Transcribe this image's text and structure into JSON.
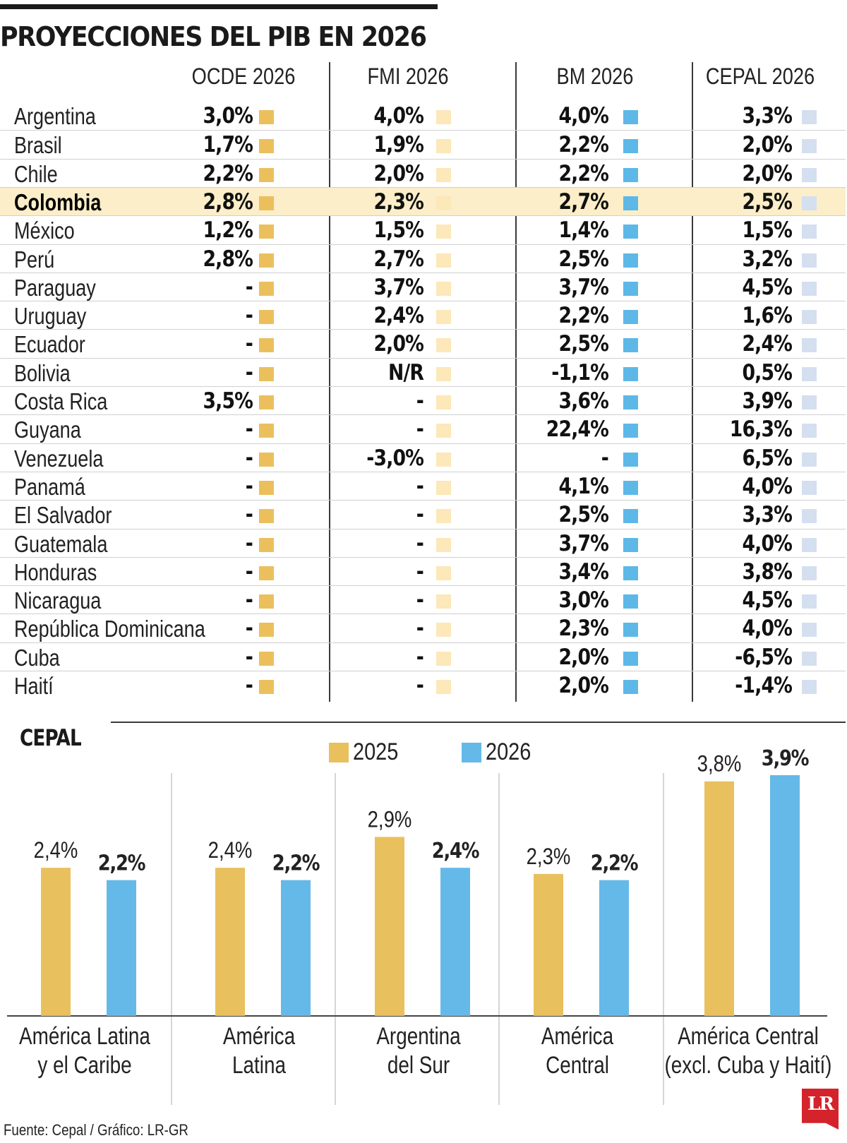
{
  "title": "PROYECCIONES DEL PIB EN 2026",
  "colors": {
    "ocde": "#EBC05C",
    "fmi": "#FCE8B8",
    "bm": "#5DB8E8",
    "cepal": "#D4DFF0",
    "bar2025": "#E9C05E",
    "bar2026": "#64B9E9",
    "highlight": "#FBEEC8"
  },
  "table": {
    "headers": [
      "OCDE 2026",
      "FMI 2026",
      "BM 2026",
      "CEPAL 2026"
    ],
    "rows": [
      {
        "country": "Argentina",
        "ocde": "3,0%",
        "fmi": "4,0%",
        "bm": "4,0%",
        "cepal": "3,3%"
      },
      {
        "country": "Brasil",
        "ocde": "1,7%",
        "fmi": "1,9%",
        "bm": "2,2%",
        "cepal": "2,0%"
      },
      {
        "country": "Chile",
        "ocde": "2,2%",
        "fmi": "2,0%",
        "bm": "2,2%",
        "cepal": "2,0%"
      },
      {
        "country": "Colombia",
        "ocde": "2,8%",
        "fmi": "2,3%",
        "bm": "2,7%",
        "cepal": "2,5%",
        "highlight": true
      },
      {
        "country": "México",
        "ocde": "1,2%",
        "fmi": "1,5%",
        "bm": "1,4%",
        "cepal": "1,5%"
      },
      {
        "country": "Perú",
        "ocde": "2,8%",
        "fmi": "2,7%",
        "bm": "2,5%",
        "cepal": "3,2%"
      },
      {
        "country": "Paraguay",
        "ocde": "-",
        "fmi": "3,7%",
        "bm": "3,7%",
        "cepal": "4,5%"
      },
      {
        "country": "Uruguay",
        "ocde": "-",
        "fmi": "2,4%",
        "bm": "2,2%",
        "cepal": "1,6%"
      },
      {
        "country": "Ecuador",
        "ocde": "-",
        "fmi": "2,0%",
        "bm": "2,5%",
        "cepal": "2,4%"
      },
      {
        "country": "Bolivia",
        "ocde": "-",
        "fmi": "N/R",
        "bm": "-1,1%",
        "cepal": "0,5%"
      },
      {
        "country": "Costa Rica",
        "ocde": "3,5%",
        "fmi": "-",
        "bm": "3,6%",
        "cepal": "3,9%"
      },
      {
        "country": "Guyana",
        "ocde": "-",
        "fmi": "-",
        "bm": "22,4%",
        "cepal": "16,3%"
      },
      {
        "country": "Venezuela",
        "ocde": "-",
        "fmi": "-3,0%",
        "bm": "-",
        "cepal": "6,5%"
      },
      {
        "country": "Panamá",
        "ocde": "-",
        "fmi": "-",
        "bm": "4,1%",
        "cepal": "4,0%"
      },
      {
        "country": "El Salvador",
        "ocde": "-",
        "fmi": "-",
        "bm": "2,5%",
        "cepal": "3,3%"
      },
      {
        "country": "Guatemala",
        "ocde": "-",
        "fmi": "-",
        "bm": "3,7%",
        "cepal": "4,0%"
      },
      {
        "country": "Honduras",
        "ocde": "-",
        "fmi": "-",
        "bm": "3,4%",
        "cepal": "3,8%"
      },
      {
        "country": "Nicaragua",
        "ocde": "-",
        "fmi": "-",
        "bm": "3,0%",
        "cepal": "4,5%"
      },
      {
        "country": "República Dominicana",
        "ocde": "-",
        "fmi": "-",
        "bm": "2,3%",
        "cepal": "4,0%"
      },
      {
        "country": "Cuba",
        "ocde": "-",
        "fmi": "-",
        "bm": "2,0%",
        "cepal": "-6,5%"
      },
      {
        "country": "Haití",
        "ocde": "-",
        "fmi": "-",
        "bm": "2,0%",
        "cepal": "-1,4%"
      }
    ]
  },
  "chart_data": {
    "type": "bar",
    "title": "CEPAL",
    "categories": [
      [
        "América Latina",
        "y el Caribe"
      ],
      [
        "América",
        "Latina"
      ],
      [
        "Argentina",
        "del Sur"
      ],
      [
        "América",
        "Central"
      ],
      [
        "América Central",
        "(excl. Cuba y Haití)"
      ]
    ],
    "series": [
      {
        "name": "2025",
        "values": [
          2.4,
          2.4,
          2.9,
          2.3,
          3.8
        ],
        "labels": [
          "2,4%",
          "2,4%",
          "2,9%",
          "2,3%",
          "3,8%"
        ]
      },
      {
        "name": "2026",
        "values": [
          2.2,
          2.2,
          2.4,
          2.2,
          3.9
        ],
        "labels": [
          "2,2%",
          "2,2%",
          "2,4%",
          "2,2%",
          "3,9%"
        ]
      }
    ],
    "ylim": [
      0,
      3.9
    ],
    "legend": "top"
  },
  "source": "Fuente: Cepal / Gráfico: LR-GR",
  "logo": "LR"
}
